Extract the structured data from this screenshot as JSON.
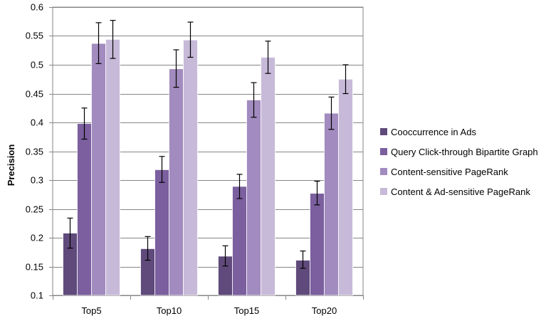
{
  "chart_data": {
    "type": "bar",
    "categories": [
      "Top5",
      "Top10",
      "Top15",
      "Top20"
    ],
    "series": [
      {
        "name": "Cooccurrence in Ads",
        "color": "#604a7b",
        "values": [
          0.208,
          0.181,
          0.168,
          0.161
        ],
        "err_low": [
          0.182,
          0.161,
          0.151,
          0.147
        ],
        "err_high": [
          0.234,
          0.202,
          0.186,
          0.177
        ]
      },
      {
        "name": "Query Click-through Bipartite Graph",
        "color": "#7b5f9e",
        "values": [
          0.398,
          0.318,
          0.289,
          0.277
        ],
        "err_low": [
          0.371,
          0.296,
          0.268,
          0.257
        ],
        "err_high": [
          0.425,
          0.341,
          0.31,
          0.298
        ]
      },
      {
        "name": "Content-sensitive PageRank",
        "color": "#a28bbf",
        "values": [
          0.537,
          0.493,
          0.439,
          0.416
        ],
        "err_low": [
          0.502,
          0.461,
          0.409,
          0.388
        ],
        "err_high": [
          0.573,
          0.526,
          0.469,
          0.444
        ]
      },
      {
        "name": "Content & Ad-sensitive PageRank",
        "color": "#c7bad9",
        "values": [
          0.544,
          0.543,
          0.513,
          0.475
        ],
        "err_low": [
          0.511,
          0.513,
          0.485,
          0.45
        ],
        "err_high": [
          0.577,
          0.574,
          0.541,
          0.5
        ]
      }
    ],
    "title": "",
    "xlabel": "",
    "ylabel": "Precision",
    "ylim": [
      0.1,
      0.6
    ],
    "yticks": [
      0.1,
      0.15,
      0.2,
      0.25,
      0.3,
      0.35,
      0.4,
      0.45,
      0.5,
      0.55,
      0.6
    ],
    "ytick_labels": [
      "0.1",
      "0.15",
      "0.2",
      "0.25",
      "0.3",
      "0.35",
      "0.4",
      "0.45",
      "0.5",
      "0.55",
      "0.6"
    ],
    "grid": true,
    "legend_position": "right",
    "error_bars": true
  }
}
